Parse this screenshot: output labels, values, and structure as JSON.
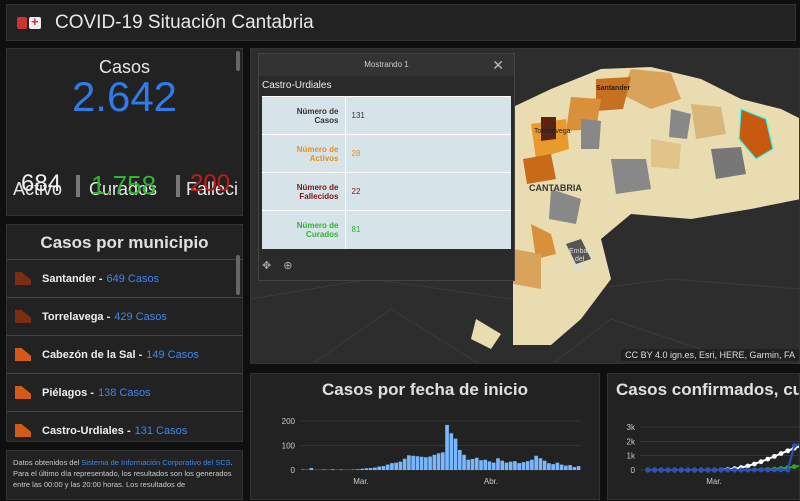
{
  "header": {
    "title": "COVID-19 Situación Cantabria"
  },
  "casos": {
    "label": "Casos",
    "total": "2.642",
    "activo_label": "Activo",
    "curados_label": "Curados",
    "fallecidos_label": "Falleci",
    "activo": "684",
    "curados": "1.758",
    "fallecidos": "200"
  },
  "municipios": {
    "title": "Casos por municipio",
    "items": [
      {
        "name": "Santander -",
        "count": "649 Casos",
        "color": "#7a2e14"
      },
      {
        "name": "Torrelavega -",
        "count": "429 Casos",
        "color": "#7a2e14"
      },
      {
        "name": "Cabezón de la Sal -",
        "count": "149 Casos",
        "color": "#d35b15"
      },
      {
        "name": "Piélagos -",
        "count": "138 Casos",
        "color": "#d35b15"
      },
      {
        "name": "Castro-Urdiales -",
        "count": "131 Casos",
        "color": "#d35b15"
      }
    ]
  },
  "note": {
    "t1": "Datos obtenidos del ",
    "link": "Sistema de Información Corporativo del SCS",
    "t2": ". Para el último día representado, los resultados son los generados entre las 00:00 y las 20:00 horas. Los resultados de"
  },
  "map": {
    "attribution": "CC BY 4.0 ign.es, Esri, HERE, Garmin, FA",
    "labels": {
      "santander": "Santander",
      "torrelavega": "Torrelavega",
      "cantabria": "CANTABRIA",
      "embalse1": "Embalse",
      "embalse2": "del",
      "embalse3": "Ebro"
    }
  },
  "popup": {
    "header": "Mostrando 1",
    "title": "Castro-Urdiales",
    "rows": [
      {
        "k1": "Número de",
        "k2": "Casos",
        "v": "131",
        "color": "#333333"
      },
      {
        "k1": "Número de",
        "k2": "Activos",
        "v": "28",
        "color": "#e8901c"
      },
      {
        "k1": "Número de",
        "k2": "Fallecidos",
        "v": "22",
        "color": "#7a1414"
      },
      {
        "k1": "Número de",
        "k2": "Curados",
        "v": "81",
        "color": "#2fb52f"
      }
    ]
  },
  "chart_data": [
    {
      "type": "bar",
      "title": "Casos por fecha de inicio",
      "ylim": [
        0,
        200
      ],
      "yticks": [
        "200",
        "100",
        "0"
      ],
      "xticks": [
        "Mar.",
        "Abr."
      ],
      "values": [
        2,
        1,
        8,
        1,
        1,
        2,
        1,
        3,
        1,
        2,
        1,
        1,
        2,
        3,
        5,
        7,
        8,
        10,
        14,
        16,
        22,
        28,
        30,
        34,
        46,
        60,
        58,
        56,
        54,
        52,
        55,
        62,
        68,
        72,
        184,
        150,
        128,
        82,
        62,
        42,
        45,
        50,
        40,
        42,
        35,
        30,
        48,
        38,
        30,
        34,
        36,
        28,
        32,
        36,
        42,
        58,
        48,
        38,
        28,
        24,
        30,
        22,
        18,
        20,
        12,
        16
      ]
    },
    {
      "type": "line",
      "title": "Casos confirmados, cura",
      "ylim": [
        0,
        3000
      ],
      "yticks": [
        "3k",
        "2k",
        "1k",
        "0"
      ],
      "xticks": [
        "Mar."
      ],
      "series": [
        {
          "color": "#ffffff",
          "values": [
            0,
            0,
            0,
            0,
            0,
            0,
            0,
            0,
            0,
            0,
            0,
            10,
            40,
            90,
            170,
            280,
            420,
            580,
            760,
            950,
            1150,
            1340,
            1520,
            1680
          ]
        },
        {
          "color": "#2fa82f",
          "values": [
            0,
            0,
            0,
            0,
            0,
            0,
            0,
            0,
            0,
            0,
            0,
            0,
            0,
            0,
            0,
            5,
            10,
            20,
            40,
            70,
            110,
            160,
            230,
            300
          ]
        },
        {
          "color": "#2f4fbf",
          "values": [
            0,
            0,
            0,
            0,
            0,
            0,
            0,
            0,
            0,
            0,
            0,
            0,
            0,
            0,
            0,
            0,
            0,
            0,
            0,
            0,
            0,
            0,
            1700,
            1850
          ]
        }
      ]
    }
  ]
}
